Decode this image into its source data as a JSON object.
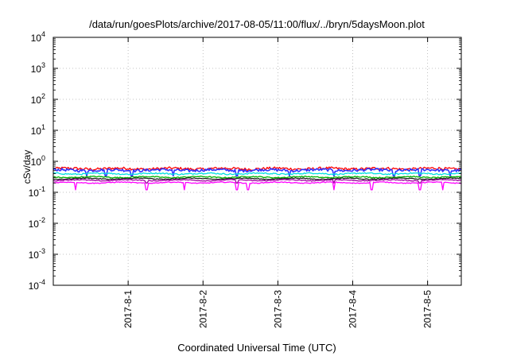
{
  "chart_data": {
    "type": "line",
    "title": "/data/run/goesPlots/archive/2017-08-05/11:00/flux/../bryn/5daysMoon.plot",
    "xlabel": "Coordinated Universal Time (UTC)",
    "ylabel": "cSv/day",
    "yscale": "log",
    "ylim": [
      0.0001,
      10000
    ],
    "xlim": [
      0.0,
      5.45
    ],
    "grid": true,
    "y_ticks": [
      {
        "value": 0.0001,
        "base": "10",
        "exp": "-4"
      },
      {
        "value": 0.001,
        "base": "10",
        "exp": "-3"
      },
      {
        "value": 0.01,
        "base": "10",
        "exp": "-2"
      },
      {
        "value": 0.1,
        "base": "10",
        "exp": "-1"
      },
      {
        "value": 1,
        "base": "10",
        "exp": "0"
      },
      {
        "value": 10,
        "base": "10",
        "exp": "1"
      },
      {
        "value": 100,
        "base": "10",
        "exp": "2"
      },
      {
        "value": 1000,
        "base": "10",
        "exp": "3"
      },
      {
        "value": 10000,
        "base": "10",
        "exp": "4"
      }
    ],
    "x_ticks": [
      {
        "value": 1,
        "label": "2017-8-1"
      },
      {
        "value": 2,
        "label": "2017-8-2"
      },
      {
        "value": 3,
        "label": "2017-8-3"
      },
      {
        "value": 4,
        "label": "2017-8-4"
      },
      {
        "value": 5,
        "label": "2017-8-5"
      }
    ],
    "series": [
      {
        "color": "#ff0000",
        "level": 0.58,
        "jitter": 0.1,
        "dips": [],
        "dip_to": 0.48
      },
      {
        "color": "#3030ff",
        "level": 0.52,
        "jitter": 0.1,
        "dips": [
          0.45,
          0.7,
          1.05,
          1.6,
          2.45,
          3.15,
          3.75,
          4.55,
          4.9,
          5.3
        ],
        "dip_to": 0.34
      },
      {
        "color": "#00e0e0",
        "level": 0.4,
        "jitter": 0.05,
        "dips": [],
        "dip_to": 0.34
      },
      {
        "color": "#00b000",
        "level": 0.31,
        "jitter": 0.04,
        "dips": [],
        "dip_to": 0.27
      },
      {
        "color": "#202020",
        "level": 0.275,
        "jitter": 0.03,
        "dips": [],
        "dip_to": 0.24
      },
      {
        "color": "#a000a0",
        "level": 0.245,
        "jitter": 0.03,
        "dips": [
          1.25,
          2.45,
          3.75,
          4.9
        ],
        "dip_to": 0.2
      },
      {
        "color": "#ff00ff",
        "level": 0.205,
        "jitter": 0.03,
        "dips": [
          0.3,
          1.25,
          1.75,
          2.45,
          2.6,
          3.75,
          4.25,
          4.9,
          5.2
        ],
        "dip_to": 0.12
      }
    ]
  }
}
